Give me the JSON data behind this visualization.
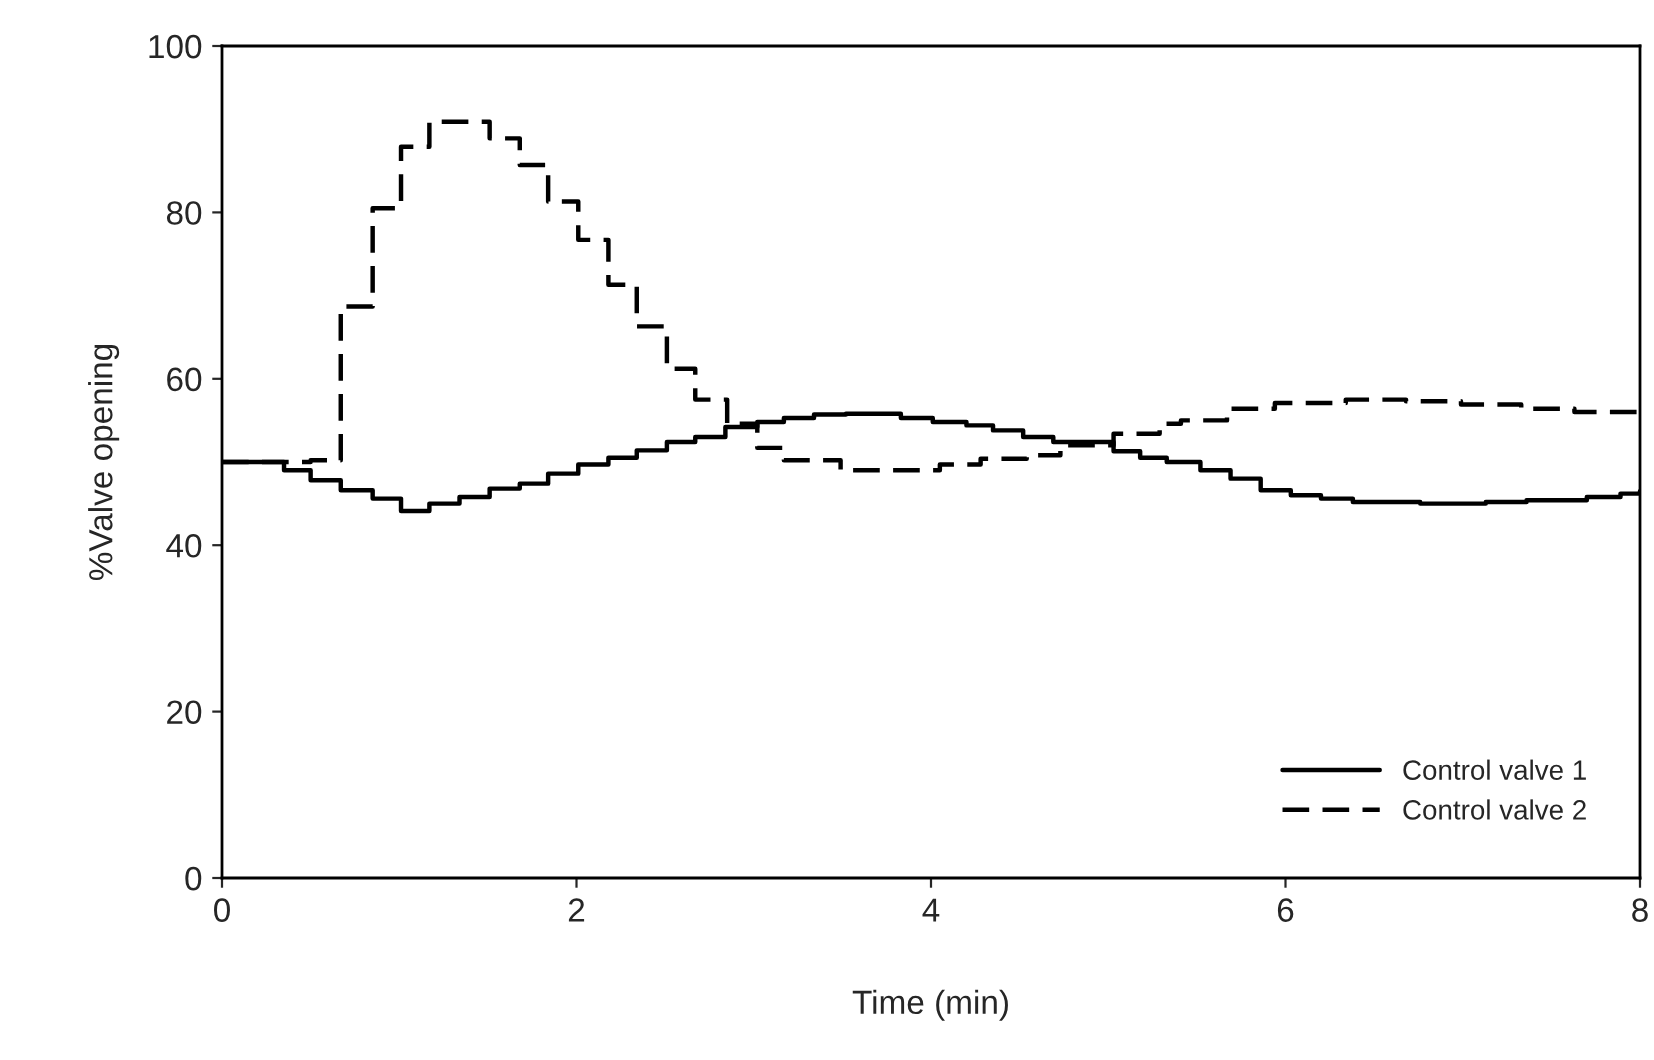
{
  "chart_data": {
    "type": "step",
    "xlabel": "Time (min)",
    "ylabel": "%Valve opening",
    "xlim": [
      0,
      8
    ],
    "ylim": [
      0,
      100
    ],
    "xticks": [
      0,
      2,
      4,
      6,
      8
    ],
    "yticks": [
      0,
      20,
      40,
      60,
      80,
      100
    ],
    "grid": false,
    "legend": "bottom right",
    "series": [
      {
        "name": "Control valve 1",
        "color": "#000000",
        "line_style": "solid",
        "x": [
          0,
          0.35,
          0.5,
          0.67,
          0.85,
          1.01,
          1.17,
          1.34,
          1.51,
          1.68,
          1.84,
          2.01,
          2.18,
          2.34,
          2.51,
          2.67,
          2.84,
          3.02,
          3.17,
          3.34,
          3.52,
          3.83,
          4.01,
          4.2,
          4.35,
          4.52,
          4.69,
          5.03,
          5.18,
          5.33,
          5.52,
          5.69,
          5.86,
          6.03,
          6.2,
          6.38,
          6.76,
          7.13,
          7.36,
          7.7,
          7.89,
          8.0
        ],
        "values": [
          50,
          49,
          47.8,
          46.6,
          45.6,
          44.1,
          45,
          45.8,
          46.8,
          47.4,
          48.6,
          49.7,
          50.5,
          51.4,
          52.4,
          53,
          54.2,
          54.8,
          55.3,
          55.7,
          55.8,
          55.3,
          54.8,
          54.4,
          53.8,
          53,
          52.4,
          51.3,
          50.5,
          50,
          49,
          48,
          46.6,
          46,
          45.6,
          45.2,
          45,
          45.2,
          45.4,
          45.8,
          46.2,
          46.5
        ]
      },
      {
        "name": "Control valve 2",
        "color": "#000000",
        "line_style": "dashed",
        "x": [
          0,
          0.5,
          0.67,
          0.85,
          1.01,
          1.17,
          1.51,
          1.68,
          1.84,
          2.01,
          2.18,
          2.34,
          2.51,
          2.67,
          2.85,
          3.02,
          3.17,
          3.49,
          3.71,
          4.05,
          4.28,
          4.54,
          4.73,
          5.03,
          5.29,
          5.41,
          5.67,
          5.94,
          6.34,
          6.68,
          6.99,
          7.33,
          7.63,
          8.0
        ],
        "values": [
          50,
          50.2,
          68.7,
          80.5,
          87.9,
          90.9,
          88.9,
          85.7,
          81.3,
          76.7,
          71.3,
          66.3,
          61.2,
          57.5,
          54.6,
          51.7,
          50.2,
          49,
          49,
          49.7,
          50.4,
          50.8,
          52,
          53.4,
          54.6,
          55,
          56.4,
          57.1,
          57.5,
          57.3,
          56.9,
          56.4,
          56,
          55.7
        ]
      }
    ]
  }
}
